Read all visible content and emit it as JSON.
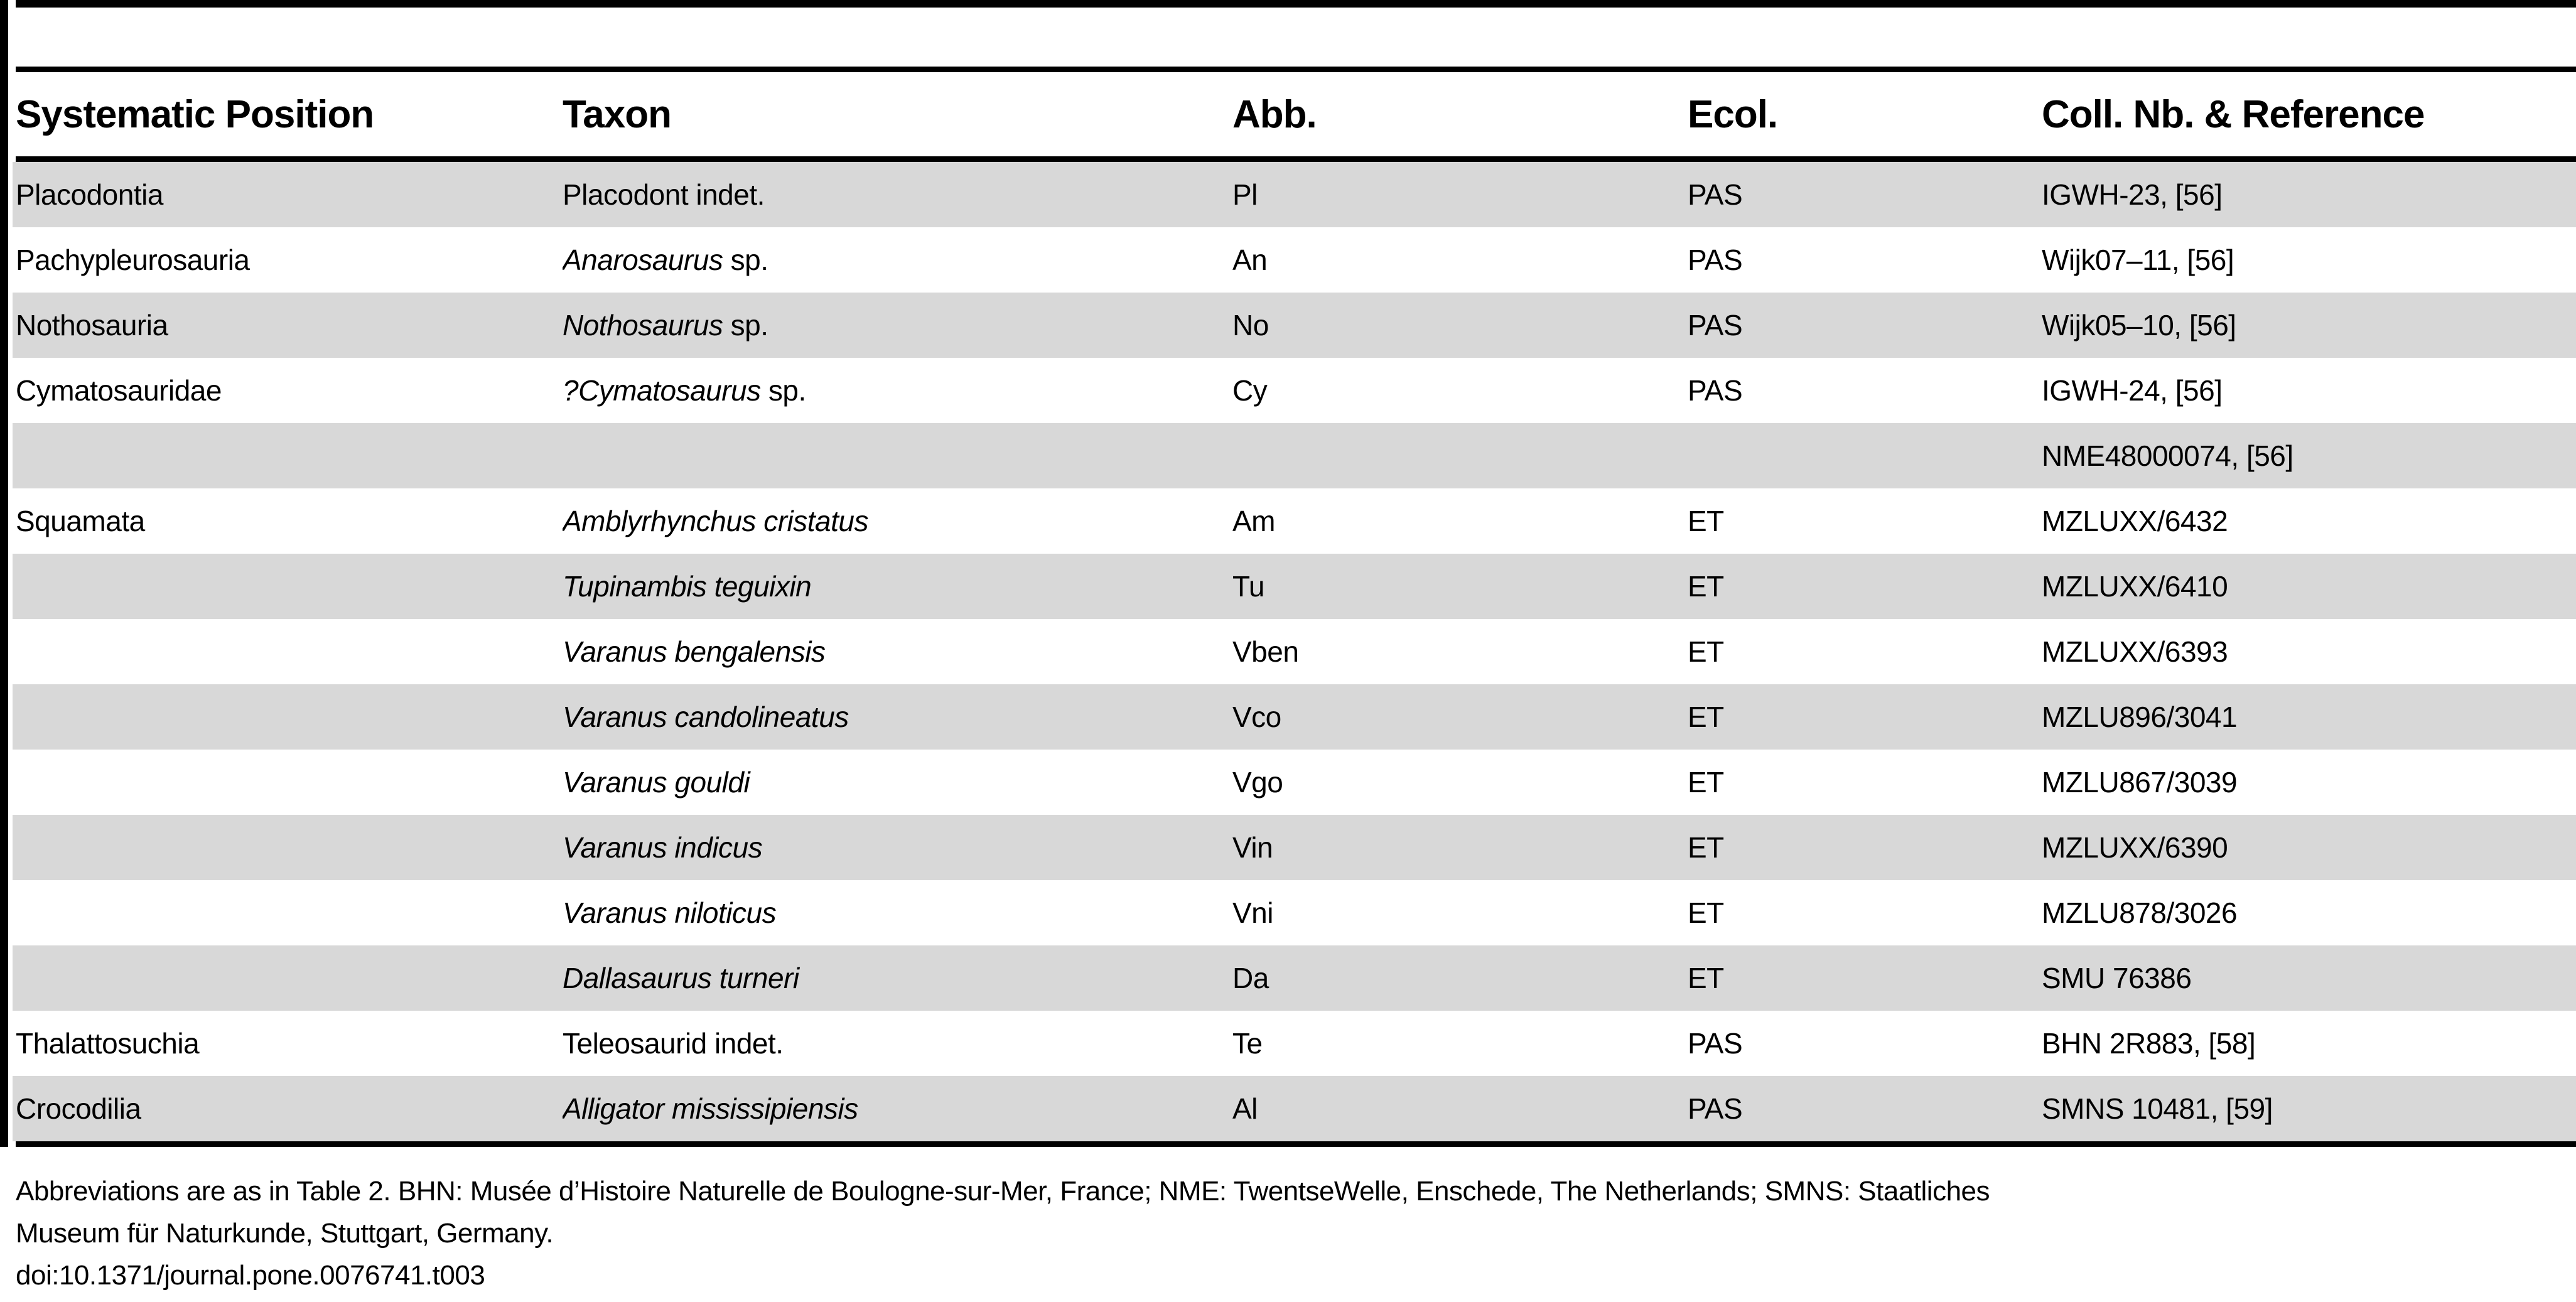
{
  "colors": {
    "zebra_row": "#d8d8d8",
    "rule": "#000000",
    "background": "#ffffff",
    "text": "#000000"
  },
  "table": {
    "columns": [
      "Systematic Position",
      "Taxon",
      "Abb.",
      "Ecol.",
      "Coll. Nb. & Reference"
    ],
    "rows": [
      {
        "position": "Placodontia",
        "taxon_italic": "",
        "taxon_regular": "Placodont indet.",
        "abb": "Pl",
        "ecol": "PAS",
        "ref": "IGWH-23, [56]"
      },
      {
        "position": "Pachypleurosauria",
        "taxon_italic": "Anarosaurus",
        "taxon_regular": " sp.",
        "abb": "An",
        "ecol": "PAS",
        "ref": "Wijk07–11, [56]"
      },
      {
        "position": "Nothosauria",
        "taxon_italic": "Nothosaurus",
        "taxon_regular": " sp.",
        "abb": "No",
        "ecol": "PAS",
        "ref": "Wijk05–10, [56]"
      },
      {
        "position": "Cymatosauridae",
        "taxon_italic": "?Cymatosaurus",
        "taxon_regular": " sp.",
        "abb": "Cy",
        "ecol": "PAS",
        "ref": "IGWH-24, [56]"
      },
      {
        "position": "",
        "taxon_italic": "",
        "taxon_regular": "",
        "abb": "",
        "ecol": "",
        "ref": "NME48000074, [56]"
      },
      {
        "position": "Squamata",
        "taxon_italic": "Amblyrhynchus cristatus",
        "taxon_regular": "",
        "abb": "Am",
        "ecol": "ET",
        "ref": "MZLUXX/6432"
      },
      {
        "position": "",
        "taxon_italic": "Tupinambis teguixin",
        "taxon_regular": "",
        "abb": "Tu",
        "ecol": "ET",
        "ref": "MZLUXX/6410"
      },
      {
        "position": "",
        "taxon_italic": "Varanus bengalensis",
        "taxon_regular": "",
        "abb": "Vben",
        "ecol": "ET",
        "ref": "MZLUXX/6393"
      },
      {
        "position": "",
        "taxon_italic": "Varanus candolineatus",
        "taxon_regular": "",
        "abb": "Vco",
        "ecol": "ET",
        "ref": "MZLU896/3041"
      },
      {
        "position": "",
        "taxon_italic": "Varanus gouldi",
        "taxon_regular": "",
        "abb": "Vgo",
        "ecol": "ET",
        "ref": "MZLU867/3039"
      },
      {
        "position": "",
        "taxon_italic": "Varanus indicus",
        "taxon_regular": "",
        "abb": "Vin",
        "ecol": "ET",
        "ref": "MZLUXX/6390"
      },
      {
        "position": "",
        "taxon_italic": "Varanus niloticus",
        "taxon_regular": "",
        "abb": "Vni",
        "ecol": "ET",
        "ref": "MZLU878/3026"
      },
      {
        "position": "",
        "taxon_italic": "Dallasaurus turneri",
        "taxon_regular": "",
        "abb": "Da",
        "ecol": "ET",
        "ref": "SMU 76386"
      },
      {
        "position": "Thalattosuchia",
        "taxon_italic": "",
        "taxon_regular": "Teleosaurid indet.",
        "abb": "Te",
        "ecol": "PAS",
        "ref": "BHN 2R883, [58]"
      },
      {
        "position": "Crocodilia",
        "taxon_italic": "Alligator mississipiensis",
        "taxon_regular": "",
        "abb": "Al",
        "ecol": "PAS",
        "ref": "SMNS 10481, [59]"
      }
    ]
  },
  "footer": {
    "note_line1": "Abbreviations are as in Table 2. BHN: Musée d’Histoire Naturelle de Boulogne-sur-Mer, France; NME: TwentseWelle, Enschede, The Netherlands; SMNS: Staatliches",
    "note_line2": "Museum für Naturkunde, Stuttgart, Germany.",
    "doi": "doi:10.1371/journal.pone.0076741.t003"
  }
}
